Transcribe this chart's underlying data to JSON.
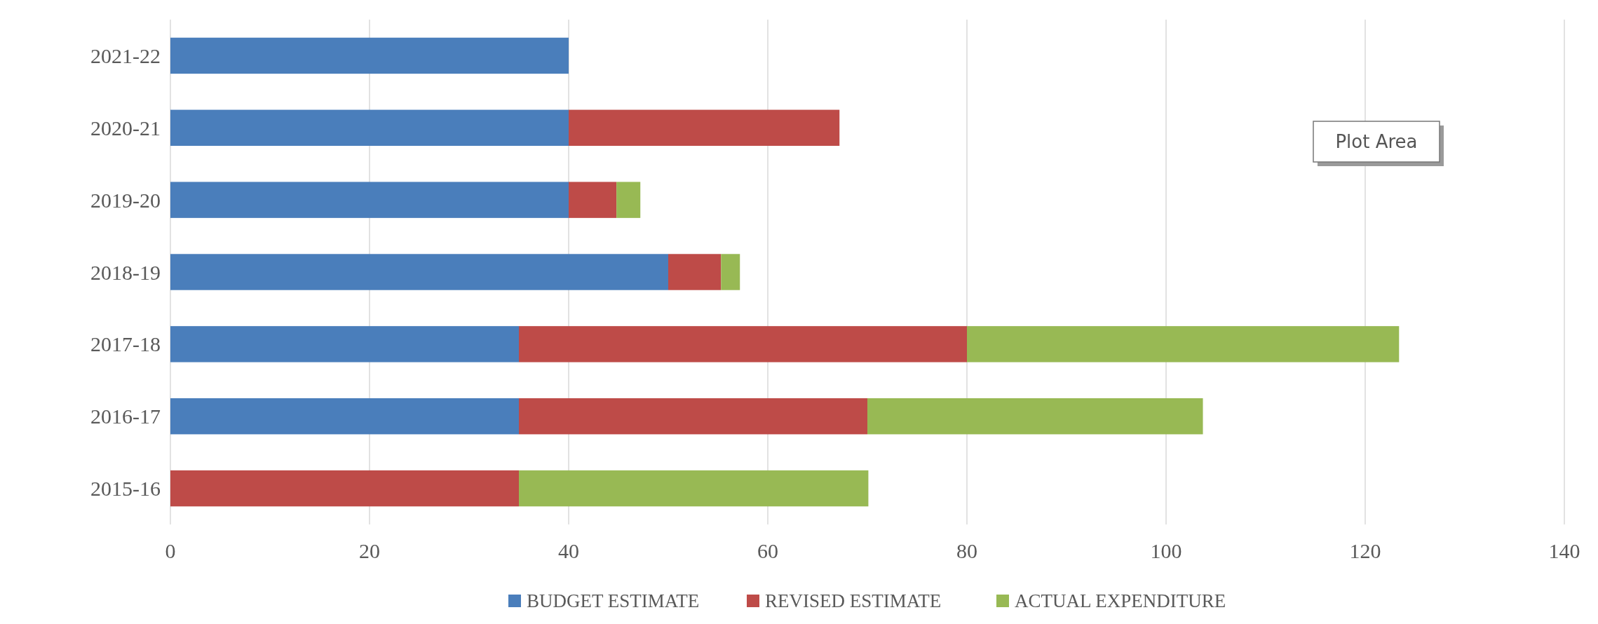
{
  "chart_data": {
    "type": "bar",
    "orientation": "horizontal",
    "stacked": true,
    "categories": [
      "2021-22",
      "2020-21",
      "2019-20",
      "2018-19",
      "2017-18",
      "2016-17",
      "2015-16"
    ],
    "series": [
      {
        "name": "BUDGET ESTIMATE",
        "color": "#4a7ebb",
        "values": [
          40,
          40,
          40,
          50,
          35,
          35,
          0
        ]
      },
      {
        "name": "REVISED ESTIMATE",
        "color": "#be4b48",
        "values": [
          0,
          27.2,
          4.8,
          5.3,
          45,
          35,
          35
        ]
      },
      {
        "name": "ACTUAL EXPENDITURE",
        "color": "#98b954",
        "values": [
          0,
          0,
          2.4,
          1.9,
          43.4,
          33.7,
          35.1
        ]
      }
    ],
    "xlim": [
      0,
      140
    ],
    "xticks": [
      0,
      20,
      40,
      60,
      80,
      100,
      120,
      140
    ],
    "grid": "x",
    "legend": "bottom",
    "annotations": [
      "Plot Area"
    ]
  }
}
